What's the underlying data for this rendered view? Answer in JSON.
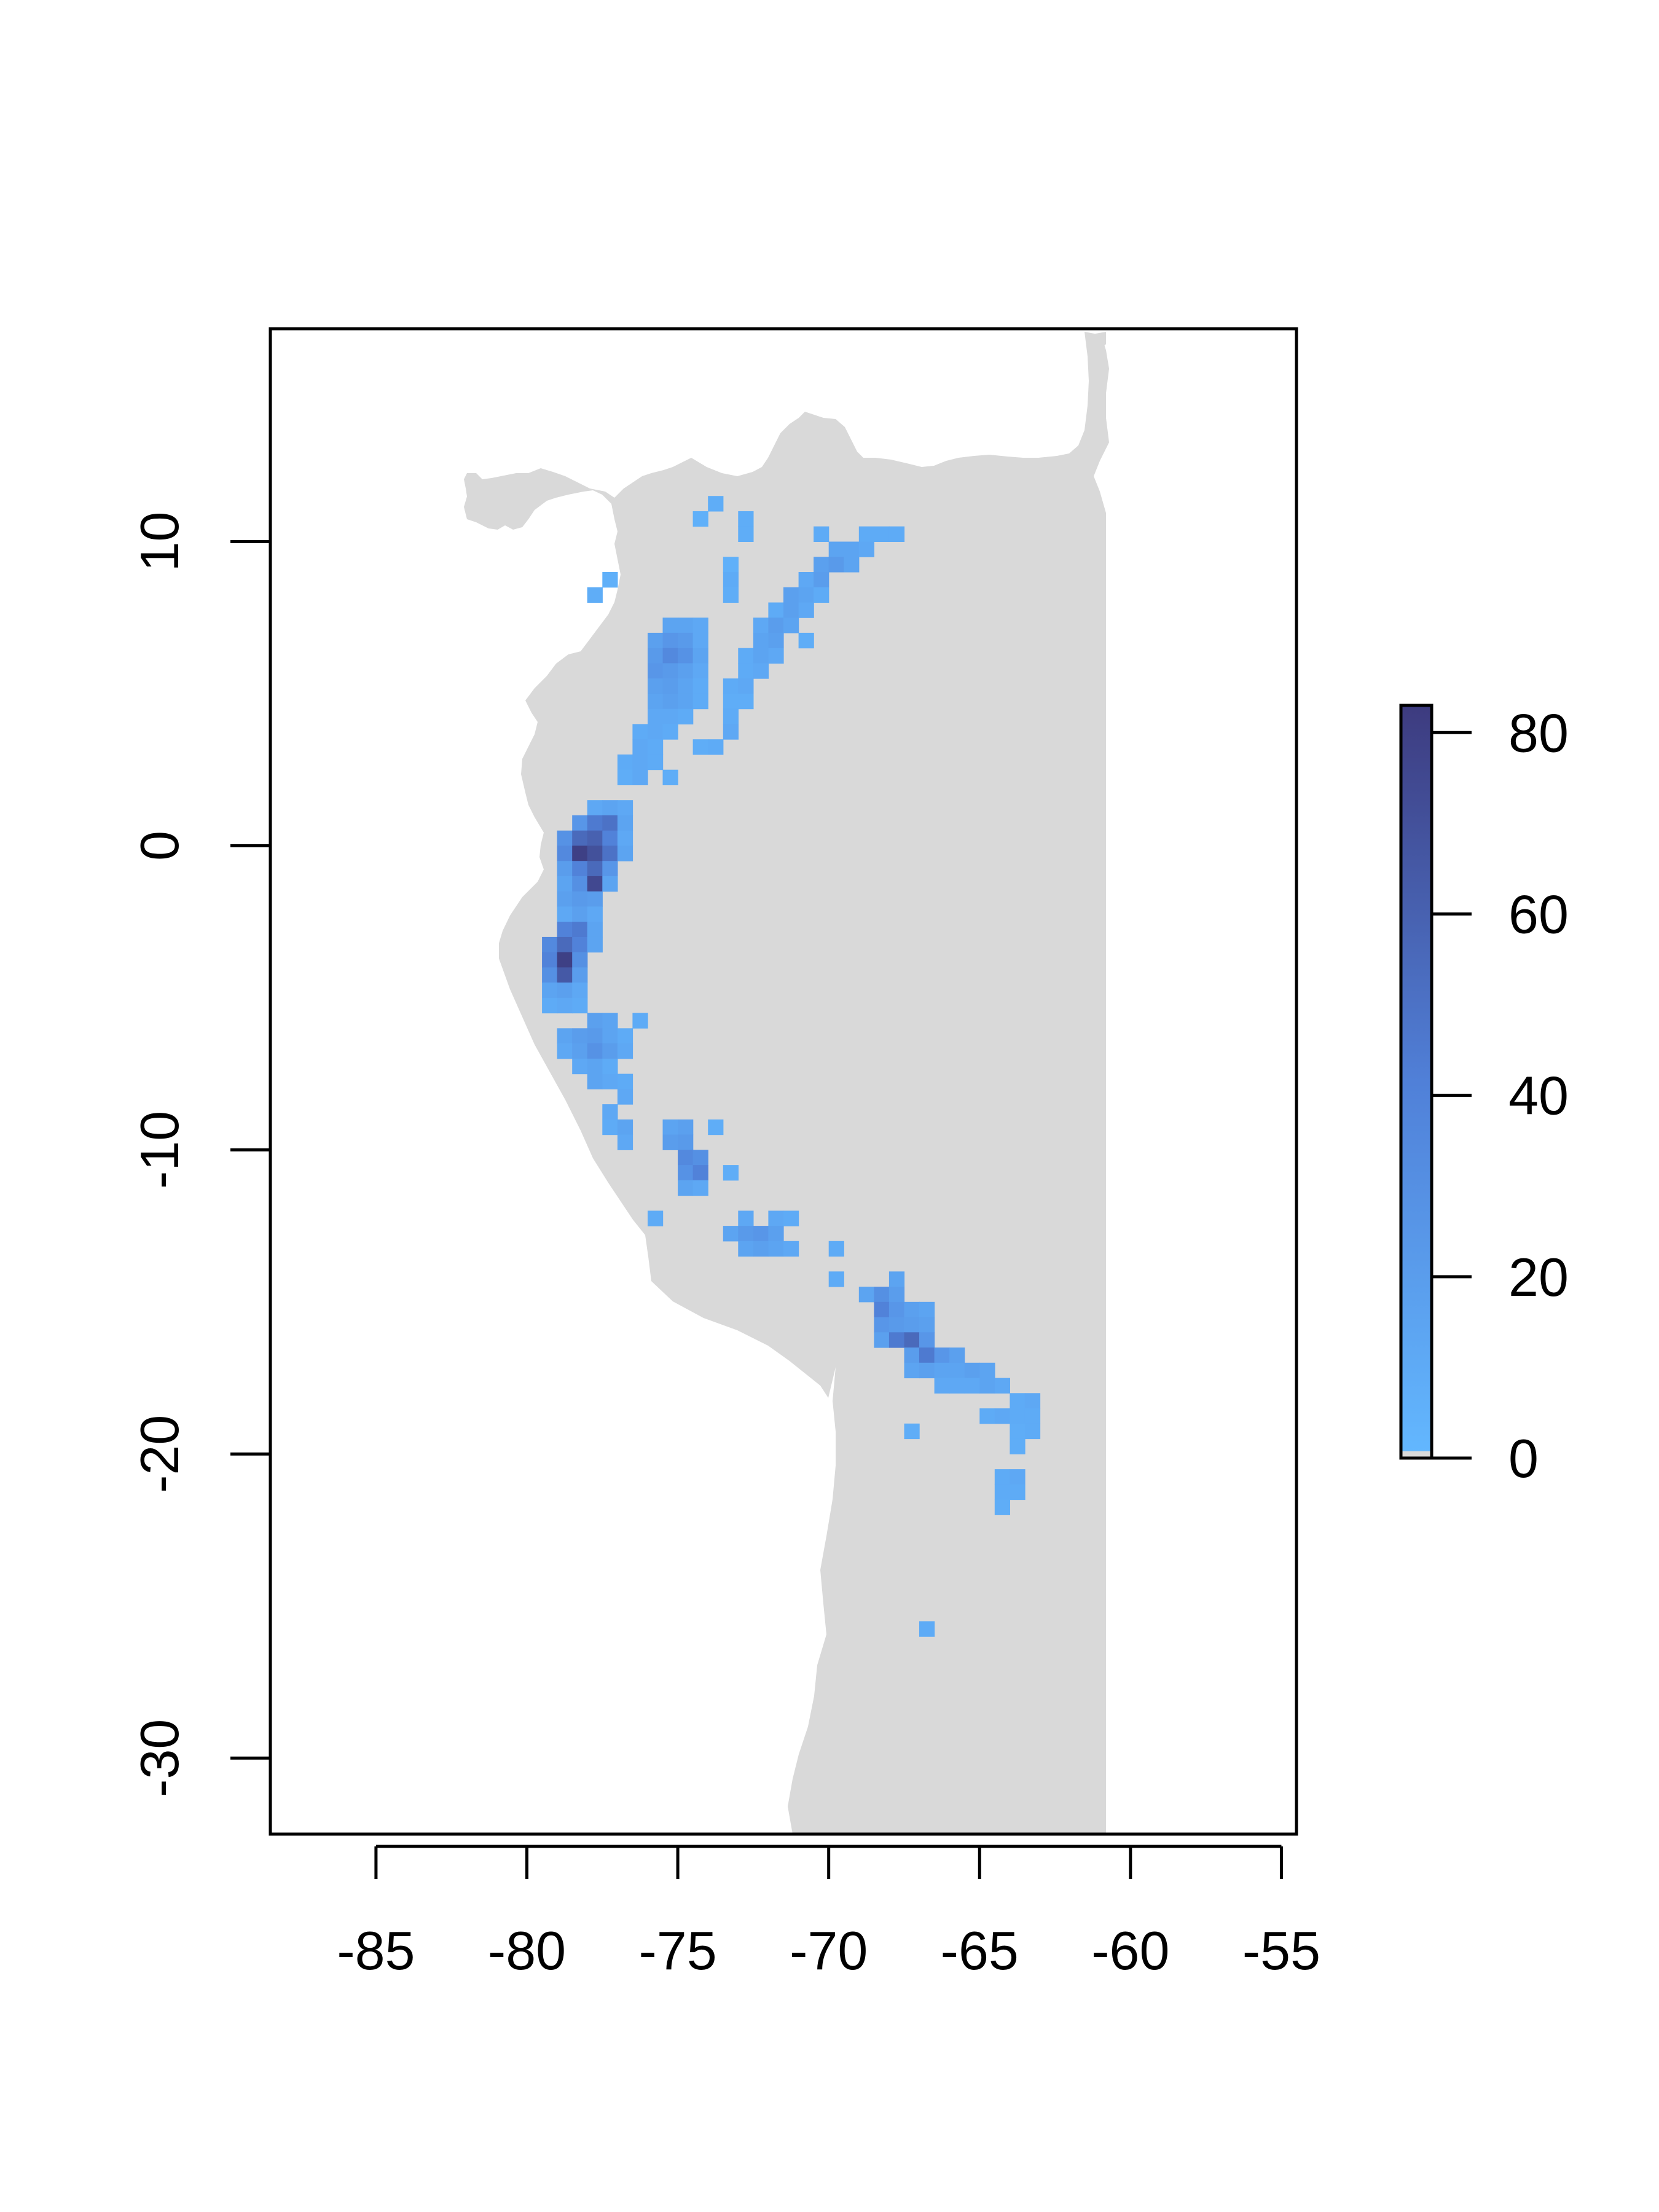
{
  "chart_data": {
    "type": "heatmap",
    "title": "",
    "xlabel": "",
    "ylabel": "",
    "xlim": [
      -88.5,
      -54.5
    ],
    "ylim": [
      -32.5,
      17
    ],
    "x_ticks": [
      -85,
      -80,
      -75,
      -70,
      -65,
      -60,
      -55
    ],
    "x_tick_labels": [
      "-85",
      "-80",
      "-75",
      "-70",
      "-65",
      "-60",
      "-55"
    ],
    "y_ticks": [
      -30,
      -20,
      -10,
      0,
      10
    ],
    "y_tick_labels": [
      "-30",
      "-20",
      "-10",
      "0",
      "10"
    ],
    "background_land_color": "#d9d9d9",
    "colorbar": {
      "min": 0,
      "max": 83,
      "ticks": [
        0,
        20,
        40,
        60,
        80
      ],
      "tick_labels": [
        "0",
        "20",
        "40",
        "60",
        "80"
      ],
      "color_low": "#63b8ff",
      "color_high": "#3d3b7f"
    },
    "cell_size_degrees": 0.5,
    "cells": [
      [
        -74.0,
        11.0,
        8
      ],
      [
        -73.0,
        10.5,
        8
      ],
      [
        -74.5,
        10.5,
        6
      ],
      [
        -73.0,
        10.0,
        8
      ],
      [
        -73.5,
        9.0,
        6
      ],
      [
        -73.5,
        8.5,
        10
      ],
      [
        -73.5,
        8.0,
        8
      ],
      [
        -70.5,
        10.0,
        10
      ],
      [
        -69.0,
        10.0,
        10
      ],
      [
        -68.5,
        10.0,
        10
      ],
      [
        -68.0,
        10.0,
        10
      ],
      [
        -70.0,
        9.5,
        15
      ],
      [
        -69.5,
        9.5,
        15
      ],
      [
        -69.0,
        9.5,
        12
      ],
      [
        -70.5,
        9.0,
        18
      ],
      [
        -70.0,
        9.0,
        22
      ],
      [
        -69.5,
        9.0,
        15
      ],
      [
        -71.0,
        8.5,
        12
      ],
      [
        -70.5,
        8.5,
        20
      ],
      [
        -71.5,
        8.0,
        18
      ],
      [
        -71.0,
        8.0,
        15
      ],
      [
        -70.5,
        8.0,
        10
      ],
      [
        -72.0,
        7.5,
        10
      ],
      [
        -71.5,
        7.5,
        18
      ],
      [
        -71.0,
        7.5,
        12
      ],
      [
        -72.5,
        7.0,
        12
      ],
      [
        -72.0,
        7.0,
        20
      ],
      [
        -71.5,
        7.0,
        15
      ],
      [
        -72.5,
        6.5,
        15
      ],
      [
        -72.0,
        6.5,
        18
      ],
      [
        -71.0,
        6.5,
        8
      ],
      [
        -73.0,
        6.0,
        10
      ],
      [
        -72.5,
        6.0,
        15
      ],
      [
        -72.0,
        6.0,
        12
      ],
      [
        -73.0,
        5.5,
        10
      ],
      [
        -72.5,
        5.5,
        12
      ],
      [
        -73.5,
        5.0,
        10
      ],
      [
        -73.0,
        5.0,
        12
      ],
      [
        -73.5,
        4.5,
        8
      ],
      [
        -73.0,
        4.5,
        8
      ],
      [
        -73.5,
        4.0,
        10
      ],
      [
        -73.5,
        3.5,
        12
      ],
      [
        -74.0,
        3.0,
        10
      ],
      [
        -74.5,
        3.0,
        8
      ],
      [
        -78.0,
        8.0,
        8
      ],
      [
        -77.5,
        8.5,
        6
      ],
      [
        -75.5,
        7.0,
        15
      ],
      [
        -75.0,
        7.0,
        15
      ],
      [
        -74.5,
        7.0,
        12
      ],
      [
        -76.0,
        6.5,
        18
      ],
      [
        -75.5,
        6.5,
        25
      ],
      [
        -75.0,
        6.5,
        22
      ],
      [
        -74.5,
        6.5,
        12
      ],
      [
        -76.0,
        6.0,
        22
      ],
      [
        -75.5,
        6.0,
        35
      ],
      [
        -75.0,
        6.0,
        28
      ],
      [
        -74.5,
        6.0,
        15
      ],
      [
        -76.0,
        5.5,
        25
      ],
      [
        -75.5,
        5.5,
        22
      ],
      [
        -75.0,
        5.5,
        18
      ],
      [
        -74.5,
        5.5,
        12
      ],
      [
        -76.0,
        5.0,
        18
      ],
      [
        -75.5,
        5.0,
        20
      ],
      [
        -75.0,
        5.0,
        15
      ],
      [
        -74.5,
        5.0,
        10
      ],
      [
        -76.0,
        4.5,
        15
      ],
      [
        -75.5,
        4.5,
        18
      ],
      [
        -75.0,
        4.5,
        15
      ],
      [
        -74.5,
        4.5,
        10
      ],
      [
        -76.0,
        4.0,
        12
      ],
      [
        -75.5,
        4.0,
        12
      ],
      [
        -75.0,
        4.0,
        10
      ],
      [
        -76.5,
        3.5,
        10
      ],
      [
        -76.0,
        3.5,
        12
      ],
      [
        -75.5,
        3.5,
        10
      ],
      [
        -76.5,
        3.0,
        12
      ],
      [
        -76.0,
        3.0,
        10
      ],
      [
        -77.0,
        2.5,
        10
      ],
      [
        -76.5,
        2.5,
        12
      ],
      [
        -76.0,
        2.5,
        10
      ],
      [
        -77.0,
        2.0,
        8
      ],
      [
        -76.5,
        2.0,
        12
      ],
      [
        -75.5,
        2.0,
        8
      ],
      [
        -78.0,
        1.0,
        12
      ],
      [
        -77.5,
        1.0,
        15
      ],
      [
        -77.0,
        1.0,
        12
      ],
      [
        -78.5,
        0.5,
        25
      ],
      [
        -78.0,
        0.5,
        45
      ],
      [
        -77.5,
        0.5,
        50
      ],
      [
        -77.0,
        0.5,
        15
      ],
      [
        -79.0,
        0.0,
        28
      ],
      [
        -78.5,
        0.0,
        55
      ],
      [
        -78.0,
        0.0,
        60
      ],
      [
        -77.5,
        0.0,
        40
      ],
      [
        -77.0,
        0.0,
        12
      ],
      [
        -79.0,
        -0.5,
        35
      ],
      [
        -78.5,
        -0.5,
        80
      ],
      [
        -78.0,
        -0.5,
        70
      ],
      [
        -77.5,
        -0.5,
        50
      ],
      [
        -77.0,
        -0.5,
        15
      ],
      [
        -79.0,
        -1.0,
        20
      ],
      [
        -78.5,
        -1.0,
        40
      ],
      [
        -78.0,
        -1.0,
        55
      ],
      [
        -77.5,
        -1.0,
        25
      ],
      [
        -79.0,
        -1.5,
        15
      ],
      [
        -78.5,
        -1.5,
        30
      ],
      [
        -78.0,
        -1.5,
        75
      ],
      [
        -77.5,
        -1.5,
        15
      ],
      [
        -79.0,
        -2.0,
        18
      ],
      [
        -78.5,
        -2.0,
        22
      ],
      [
        -78.0,
        -2.0,
        20
      ],
      [
        -79.0,
        -2.5,
        12
      ],
      [
        -78.5,
        -2.5,
        18
      ],
      [
        -78.0,
        -2.5,
        12
      ],
      [
        -79.0,
        -3.0,
        40
      ],
      [
        -78.5,
        -3.0,
        45
      ],
      [
        -78.0,
        -3.0,
        15
      ],
      [
        -79.5,
        -3.5,
        35
      ],
      [
        -79.0,
        -3.5,
        55
      ],
      [
        -78.5,
        -3.5,
        40
      ],
      [
        -78.0,
        -3.5,
        15
      ],
      [
        -79.5,
        -4.0,
        40
      ],
      [
        -79.0,
        -4.0,
        80
      ],
      [
        -78.5,
        -4.0,
        30
      ],
      [
        -79.5,
        -4.5,
        30
      ],
      [
        -79.0,
        -4.5,
        65
      ],
      [
        -78.5,
        -4.5,
        20
      ],
      [
        -79.5,
        -5.0,
        15
      ],
      [
        -79.0,
        -5.0,
        18
      ],
      [
        -78.5,
        -5.0,
        12
      ],
      [
        -79.5,
        -5.5,
        10
      ],
      [
        -79.0,
        -5.5,
        12
      ],
      [
        -78.5,
        -5.5,
        10
      ],
      [
        -78.0,
        -6.0,
        18
      ],
      [
        -77.5,
        -6.0,
        15
      ],
      [
        -76.5,
        -6.0,
        10
      ],
      [
        -79.0,
        -6.5,
        15
      ],
      [
        -78.5,
        -6.5,
        20
      ],
      [
        -78.0,
        -6.5,
        22
      ],
      [
        -77.5,
        -6.5,
        15
      ],
      [
        -77.0,
        -6.5,
        10
      ],
      [
        -79.0,
        -7.0,
        12
      ],
      [
        -78.5,
        -7.0,
        18
      ],
      [
        -78.0,
        -7.0,
        28
      ],
      [
        -77.5,
        -7.0,
        20
      ],
      [
        -77.0,
        -7.0,
        12
      ],
      [
        -78.5,
        -7.5,
        12
      ],
      [
        -78.0,
        -7.5,
        15
      ],
      [
        -77.5,
        -7.5,
        10
      ],
      [
        -78.0,
        -8.0,
        15
      ],
      [
        -77.5,
        -8.0,
        12
      ],
      [
        -77.0,
        -8.0,
        10
      ],
      [
        -77.0,
        -8.5,
        12
      ],
      [
        -77.5,
        -9.0,
        12
      ],
      [
        -77.5,
        -9.5,
        10
      ],
      [
        -77.0,
        -9.5,
        15
      ],
      [
        -77.0,
        -10.0,
        12
      ],
      [
        -75.5,
        -9.5,
        15
      ],
      [
        -75.0,
        -9.5,
        18
      ],
      [
        -74.0,
        -9.5,
        8
      ],
      [
        -75.5,
        -10.0,
        20
      ],
      [
        -75.0,
        -10.0,
        22
      ],
      [
        -75.0,
        -10.5,
        35
      ],
      [
        -74.5,
        -10.5,
        30
      ],
      [
        -75.0,
        -11.0,
        28
      ],
      [
        -74.5,
        -11.0,
        40
      ],
      [
        -73.5,
        -11.0,
        8
      ],
      [
        -75.0,
        -11.5,
        15
      ],
      [
        -74.5,
        -11.5,
        12
      ],
      [
        -76.0,
        -12.5,
        10
      ],
      [
        -73.0,
        -12.5,
        12
      ],
      [
        -72.0,
        -12.5,
        12
      ],
      [
        -71.5,
        -12.5,
        10
      ],
      [
        -70.0,
        -13.5,
        10
      ],
      [
        -73.5,
        -13.0,
        15
      ],
      [
        -73.0,
        -13.0,
        22
      ],
      [
        -72.5,
        -13.0,
        25
      ],
      [
        -72.0,
        -13.0,
        18
      ],
      [
        -73.0,
        -13.5,
        15
      ],
      [
        -72.5,
        -13.5,
        18
      ],
      [
        -72.0,
        -13.5,
        15
      ],
      [
        -71.5,
        -13.5,
        12
      ],
      [
        -70.0,
        -14.5,
        10
      ],
      [
        -68.0,
        -14.5,
        15
      ],
      [
        -69.0,
        -15.0,
        15
      ],
      [
        -68.5,
        -15.0,
        30
      ],
      [
        -68.0,
        -15.0,
        20
      ],
      [
        -68.5,
        -15.5,
        40
      ],
      [
        -68.0,
        -15.5,
        25
      ],
      [
        -67.5,
        -15.5,
        18
      ],
      [
        -67.0,
        -15.5,
        15
      ],
      [
        -68.5,
        -16.0,
        25
      ],
      [
        -68.0,
        -16.0,
        22
      ],
      [
        -67.5,
        -16.0,
        20
      ],
      [
        -67.0,
        -16.0,
        18
      ],
      [
        -68.5,
        -16.5,
        18
      ],
      [
        -68.0,
        -16.5,
        45
      ],
      [
        -67.5,
        -16.5,
        55
      ],
      [
        -67.0,
        -16.5,
        25
      ],
      [
        -67.5,
        -17.0,
        20
      ],
      [
        -67.0,
        -17.0,
        45
      ],
      [
        -66.5,
        -17.0,
        25
      ],
      [
        -66.0,
        -17.0,
        18
      ],
      [
        -67.5,
        -17.5,
        15
      ],
      [
        -67.0,
        -17.5,
        18
      ],
      [
        -66.5,
        -17.5,
        15
      ],
      [
        -66.0,
        -17.5,
        15
      ],
      [
        -65.5,
        -17.5,
        18
      ],
      [
        -65.0,
        -17.5,
        15
      ],
      [
        -66.5,
        -18.0,
        12
      ],
      [
        -66.0,
        -18.0,
        12
      ],
      [
        -65.5,
        -18.0,
        12
      ],
      [
        -65.0,
        -18.0,
        15
      ],
      [
        -64.5,
        -18.0,
        12
      ],
      [
        -64.0,
        -18.5,
        10
      ],
      [
        -63.5,
        -18.5,
        12
      ],
      [
        -65.0,
        -19.0,
        10
      ],
      [
        -64.5,
        -19.0,
        12
      ],
      [
        -64.0,
        -19.0,
        10
      ],
      [
        -63.5,
        -19.0,
        10
      ],
      [
        -63.5,
        -19.5,
        10
      ],
      [
        -64.0,
        -19.5,
        8
      ],
      [
        -64.0,
        -20.0,
        8
      ],
      [
        -67.5,
        -19.5,
        8
      ],
      [
        -64.5,
        -21.0,
        10
      ],
      [
        -64.0,
        -21.0,
        12
      ],
      [
        -64.5,
        -21.5,
        10
      ],
      [
        -64.0,
        -21.5,
        10
      ],
      [
        -64.5,
        -22.0,
        8
      ],
      [
        -67.0,
        -26.0,
        10
      ]
    ]
  }
}
